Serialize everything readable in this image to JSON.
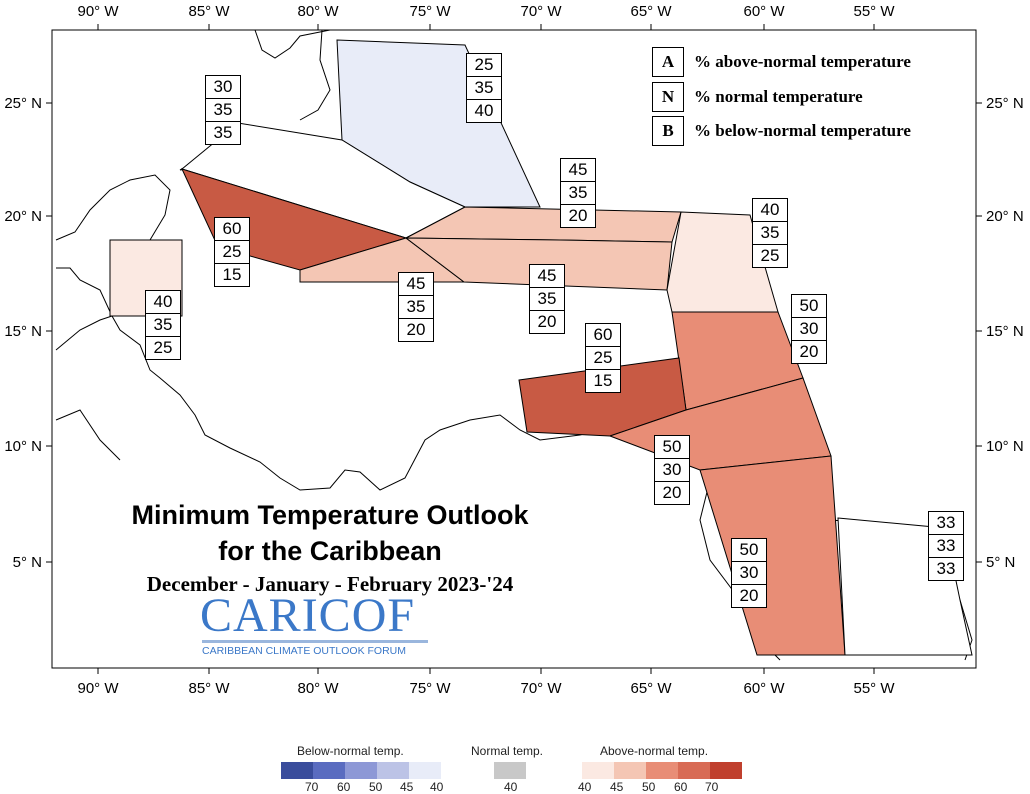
{
  "map": {
    "lon_ticks": [
      "90° W",
      "85° W",
      "80° W",
      "75° W",
      "70° W",
      "65° W",
      "60° W",
      "55° W"
    ],
    "lat_ticks": [
      "25° N",
      "20° N",
      "15° N",
      "10° N",
      "5° N"
    ]
  },
  "key": {
    "rows": [
      {
        "letter": "A",
        "text": "% above-normal temperature"
      },
      {
        "letter": "N",
        "text": "% normal temperature"
      },
      {
        "letter": "B",
        "text": "% below-normal temperature"
      }
    ]
  },
  "title": {
    "line1": "Minimum Temperature Outlook",
    "line2": "for the Caribbean",
    "season": "December - January - February 2023-'24"
  },
  "logo": {
    "name": "CARICOF",
    "subtitle": "CARIBBEAN CLIMATE OUTLOOK FORUM"
  },
  "regions": [
    {
      "id": "bahamas",
      "fill": "#e8ecf8",
      "probs": [
        "25",
        "35",
        "40"
      ]
    },
    {
      "id": "cuba-north",
      "fill": "#ffffff",
      "probs": [
        "30",
        "35",
        "35"
      ]
    },
    {
      "id": "cuba-cayman",
      "fill": "#c85a44",
      "probs": [
        "60",
        "25",
        "15"
      ]
    },
    {
      "id": "belize",
      "fill": "#fbe9e2",
      "probs": [
        "40",
        "35",
        "25"
      ]
    },
    {
      "id": "jamaica",
      "fill": "#f4c6b4",
      "probs": [
        "45",
        "35",
        "20"
      ]
    },
    {
      "id": "hispaniola-pr",
      "fill": "#f4c6b4",
      "probs": [
        "45",
        "35",
        "20"
      ]
    },
    {
      "id": "hispaniola-north",
      "fill": "#f4c6b4",
      "probs": [
        "45",
        "35",
        "20"
      ]
    },
    {
      "id": "northern-leewards",
      "fill": "#fbe9e2",
      "probs": [
        "40",
        "35",
        "25"
      ]
    },
    {
      "id": "eastern-caribbean",
      "fill": "#e88d76",
      "probs": [
        "50",
        "30",
        "20"
      ]
    },
    {
      "id": "abc-islands",
      "fill": "#c85a44",
      "probs": [
        "60",
        "25",
        "15"
      ]
    },
    {
      "id": "trinidad-coast",
      "fill": "#e88d76",
      "probs": [
        "50",
        "30",
        "20"
      ]
    },
    {
      "id": "guyana",
      "fill": "#e88d76",
      "probs": [
        "50",
        "30",
        "20"
      ]
    },
    {
      "id": "suriname-fg",
      "fill": "#ffffff",
      "probs": [
        "33",
        "33",
        "33"
      ]
    }
  ],
  "legend": {
    "below": {
      "label": "Below-normal temp.",
      "ticks": [
        "70",
        "60",
        "50",
        "45",
        "40"
      ],
      "colors": [
        "#3a4d9c",
        "#5a6cc0",
        "#8d98d6",
        "#bcc3e6",
        "#e8ecf8"
      ]
    },
    "normal": {
      "label": "Normal temp.",
      "ticks": [
        "40"
      ],
      "colors": [
        "#c8c8c8"
      ]
    },
    "above": {
      "label": "Above-normal temp.",
      "ticks": [
        "40",
        "45",
        "50",
        "60",
        "70"
      ],
      "colors": [
        "#fbe9e2",
        "#f4c6b4",
        "#e88d76",
        "#d86b55",
        "#c0402e"
      ]
    }
  }
}
